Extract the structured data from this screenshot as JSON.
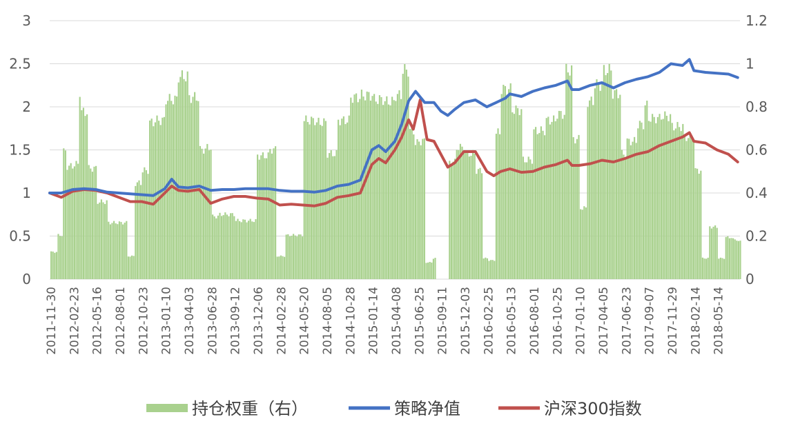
{
  "chart_data": {
    "type": "line",
    "secondary_type": "bar",
    "left_axis": {
      "ylim": [
        0,
        3
      ],
      "ticks": [
        "0",
        "0.5",
        "1",
        "1.5",
        "2",
        "2.5",
        "3"
      ]
    },
    "right_axis": {
      "ylim": [
        0,
        1.2
      ],
      "ticks": [
        "0",
        "0.2",
        "0.4",
        "0.6",
        "0.8",
        "1",
        "1.2"
      ]
    },
    "x_tick_labels": [
      "2011-11-30",
      "2012-02-23",
      "2012-05-16",
      "2012-08-01",
      "2012-10-23",
      "2013-01-10",
      "2013-04-03",
      "2013-06-28",
      "2013-09-12",
      "2013-12-06",
      "2014-02-28",
      "2014-05-20",
      "2014-08-05",
      "2014-10-28",
      "2015-01-14",
      "2015-04-08",
      "2015-06-25",
      "2015-09-11",
      "2015-12-03",
      "2016-02-25",
      "2016-05-13",
      "2016-08-01",
      "2016-10-25",
      "2017-01-10",
      "2017-04-05",
      "2017-06-23",
      "2017-09-07",
      "2017-11-29",
      "2018-02-14",
      "2018-05-14"
    ],
    "grid": true,
    "legend_position": "bottom",
    "series": [
      {
        "name": "持仓权重（右）",
        "axis": "right",
        "kind": "bar",
        "color": "#A9D18E",
        "points": [
          [
            0,
            0.13
          ],
          [
            0.33,
            0.21
          ],
          [
            0.5,
            0.61
          ],
          [
            0.66,
            0.54
          ],
          [
            1,
            0.55
          ],
          [
            1.2,
            0.9
          ],
          [
            1.33,
            0.8
          ],
          [
            1.66,
            0.53
          ],
          [
            2,
            0.37
          ],
          [
            2.5,
            0.27
          ],
          [
            3,
            0.27
          ],
          [
            3.33,
            0.11
          ],
          [
            3.66,
            0.46
          ],
          [
            4,
            0.52
          ],
          [
            4.25,
            0.75
          ],
          [
            4.5,
            0.76
          ],
          [
            5,
            0.86
          ],
          [
            5.5,
            0.97
          ],
          [
            6,
            0.87
          ],
          [
            6.5,
            0.62
          ],
          [
            6.8,
            0.63
          ],
          [
            7,
            0.3
          ],
          [
            7.33,
            0.31
          ],
          [
            8,
            0.28
          ],
          [
            8.5,
            0.28
          ],
          [
            9,
            0.59
          ],
          [
            9.5,
            0.62
          ],
          [
            9.8,
            0.11
          ],
          [
            10.2,
            0.21
          ],
          [
            10.66,
            0.21
          ],
          [
            11,
            0.76
          ],
          [
            11.5,
            0.75
          ],
          [
            12,
            0.6
          ],
          [
            12.5,
            0.76
          ],
          [
            13,
            0.87
          ],
          [
            13.5,
            0.88
          ],
          [
            14,
            0.86
          ],
          [
            14.5,
            0.85
          ],
          [
            15,
            0.88
          ],
          [
            15.3,
            1
          ],
          [
            15.6,
            0.71
          ],
          [
            15.8,
            0.65
          ],
          [
            16,
            0.66
          ],
          [
            16.3,
            0.08
          ],
          [
            16.6,
            0.1
          ],
          [
            16.8,
            0.0
          ],
          [
            17.3,
            0.56
          ],
          [
            17.6,
            0.63
          ],
          [
            18,
            0.6
          ],
          [
            18.5,
            0.52
          ],
          [
            18.8,
            0.1
          ],
          [
            19,
            0.09
          ],
          [
            19.33,
            0.7
          ],
          [
            19.6,
            0.91
          ],
          [
            20,
            0.81
          ],
          [
            20.5,
            0.57
          ],
          [
            21,
            0.71
          ],
          [
            21.5,
            0.76
          ],
          [
            22,
            0.79
          ],
          [
            22.4,
            1
          ],
          [
            22.7,
            0.67
          ],
          [
            23,
            0.34
          ],
          [
            23.3,
            0.85
          ],
          [
            23.6,
            0.93
          ],
          [
            24,
            1
          ],
          [
            24.4,
            0.89
          ],
          [
            24.8,
            0.6
          ],
          [
            25,
            0.66
          ],
          [
            25.5,
            0.74
          ],
          [
            25.8,
            0.83
          ],
          [
            26,
            0.77
          ],
          [
            26.5,
            0.78
          ],
          [
            27,
            0.73
          ],
          [
            27.5,
            0.68
          ],
          [
            28,
            0.52
          ],
          [
            28.3,
            0.1
          ],
          [
            28.6,
            0.25
          ],
          [
            29,
            0.1
          ],
          [
            29.3,
            0.2
          ],
          [
            29.6,
            0.19
          ],
          [
            29.9,
            0.18
          ]
        ]
      },
      {
        "name": "策略净值",
        "axis": "left",
        "kind": "line",
        "color": "#4472C4",
        "points": [
          [
            0,
            1.0
          ],
          [
            0.5,
            1.0
          ],
          [
            1,
            1.04
          ],
          [
            1.5,
            1.05
          ],
          [
            2,
            1.04
          ],
          [
            2.5,
            1.01
          ],
          [
            3,
            1.0
          ],
          [
            3.5,
            0.99
          ],
          [
            4,
            0.98
          ],
          [
            4.5,
            0.97
          ],
          [
            5,
            1.05
          ],
          [
            5.3,
            1.16
          ],
          [
            5.6,
            1.07
          ],
          [
            6,
            1.06
          ],
          [
            6.5,
            1.08
          ],
          [
            7,
            1.03
          ],
          [
            7.5,
            1.04
          ],
          [
            8,
            1.04
          ],
          [
            8.5,
            1.05
          ],
          [
            9,
            1.05
          ],
          [
            9.5,
            1.05
          ],
          [
            10,
            1.03
          ],
          [
            10.5,
            1.02
          ],
          [
            11,
            1.02
          ],
          [
            11.5,
            1.01
          ],
          [
            12,
            1.03
          ],
          [
            12.5,
            1.08
          ],
          [
            13,
            1.1
          ],
          [
            13.5,
            1.15
          ],
          [
            14,
            1.5
          ],
          [
            14.3,
            1.55
          ],
          [
            14.6,
            1.48
          ],
          [
            15,
            1.6
          ],
          [
            15.3,
            1.8
          ],
          [
            15.6,
            2.07
          ],
          [
            15.9,
            2.18
          ],
          [
            16.3,
            2.05
          ],
          [
            16.7,
            2.05
          ],
          [
            17,
            1.95
          ],
          [
            17.3,
            1.9
          ],
          [
            17.6,
            1.97
          ],
          [
            18,
            2.05
          ],
          [
            18.5,
            2.08
          ],
          [
            19,
            2.0
          ],
          [
            19.4,
            2.05
          ],
          [
            19.8,
            2.1
          ],
          [
            20,
            2.15
          ],
          [
            20.5,
            2.12
          ],
          [
            21,
            2.18
          ],
          [
            21.5,
            2.22
          ],
          [
            22,
            2.25
          ],
          [
            22.5,
            2.3
          ],
          [
            22.7,
            2.2
          ],
          [
            23,
            2.2
          ],
          [
            23.5,
            2.25
          ],
          [
            24,
            2.28
          ],
          [
            24.5,
            2.22
          ],
          [
            25,
            2.28
          ],
          [
            25.5,
            2.32
          ],
          [
            26,
            2.35
          ],
          [
            26.5,
            2.4
          ],
          [
            27,
            2.5
          ],
          [
            27.5,
            2.48
          ],
          [
            27.8,
            2.55
          ],
          [
            28,
            2.42
          ],
          [
            28.5,
            2.4
          ],
          [
            29,
            2.39
          ],
          [
            29.5,
            2.38
          ],
          [
            29.9,
            2.34
          ]
        ]
      },
      {
        "name": "沪深300指数",
        "axis": "left",
        "kind": "line",
        "color": "#C0504D",
        "points": [
          [
            0,
            1.0
          ],
          [
            0.5,
            0.95
          ],
          [
            1,
            1.02
          ],
          [
            1.5,
            1.04
          ],
          [
            2,
            1.03
          ],
          [
            2.5,
            1.0
          ],
          [
            3,
            0.95
          ],
          [
            3.5,
            0.9
          ],
          [
            4,
            0.9
          ],
          [
            4.5,
            0.87
          ],
          [
            5,
            1.0
          ],
          [
            5.3,
            1.08
          ],
          [
            5.6,
            1.03
          ],
          [
            6,
            1.02
          ],
          [
            6.5,
            1.04
          ],
          [
            7,
            0.88
          ],
          [
            7.5,
            0.93
          ],
          [
            8,
            0.96
          ],
          [
            8.5,
            0.96
          ],
          [
            9,
            0.94
          ],
          [
            9.5,
            0.93
          ],
          [
            10,
            0.86
          ],
          [
            10.5,
            0.87
          ],
          [
            11,
            0.86
          ],
          [
            11.5,
            0.85
          ],
          [
            12,
            0.88
          ],
          [
            12.5,
            0.95
          ],
          [
            13,
            0.97
          ],
          [
            13.5,
            1.0
          ],
          [
            14,
            1.33
          ],
          [
            14.3,
            1.4
          ],
          [
            14.6,
            1.35
          ],
          [
            15,
            1.5
          ],
          [
            15.3,
            1.65
          ],
          [
            15.6,
            1.85
          ],
          [
            15.8,
            1.74
          ],
          [
            16.1,
            2.08
          ],
          [
            16.4,
            1.62
          ],
          [
            16.7,
            1.6
          ],
          [
            17,
            1.45
          ],
          [
            17.3,
            1.3
          ],
          [
            17.6,
            1.35
          ],
          [
            18,
            1.48
          ],
          [
            18.5,
            1.48
          ],
          [
            19,
            1.25
          ],
          [
            19.3,
            1.2
          ],
          [
            19.6,
            1.25
          ],
          [
            20,
            1.28
          ],
          [
            20.5,
            1.24
          ],
          [
            21,
            1.25
          ],
          [
            21.5,
            1.3
          ],
          [
            22,
            1.33
          ],
          [
            22.5,
            1.38
          ],
          [
            22.7,
            1.32
          ],
          [
            23,
            1.32
          ],
          [
            23.5,
            1.34
          ],
          [
            24,
            1.38
          ],
          [
            24.5,
            1.36
          ],
          [
            25,
            1.4
          ],
          [
            25.5,
            1.45
          ],
          [
            26,
            1.48
          ],
          [
            26.5,
            1.55
          ],
          [
            27,
            1.6
          ],
          [
            27.5,
            1.65
          ],
          [
            27.8,
            1.7
          ],
          [
            28,
            1.6
          ],
          [
            28.5,
            1.58
          ],
          [
            29,
            1.5
          ],
          [
            29.5,
            1.45
          ],
          [
            29.9,
            1.36
          ]
        ]
      }
    ]
  }
}
